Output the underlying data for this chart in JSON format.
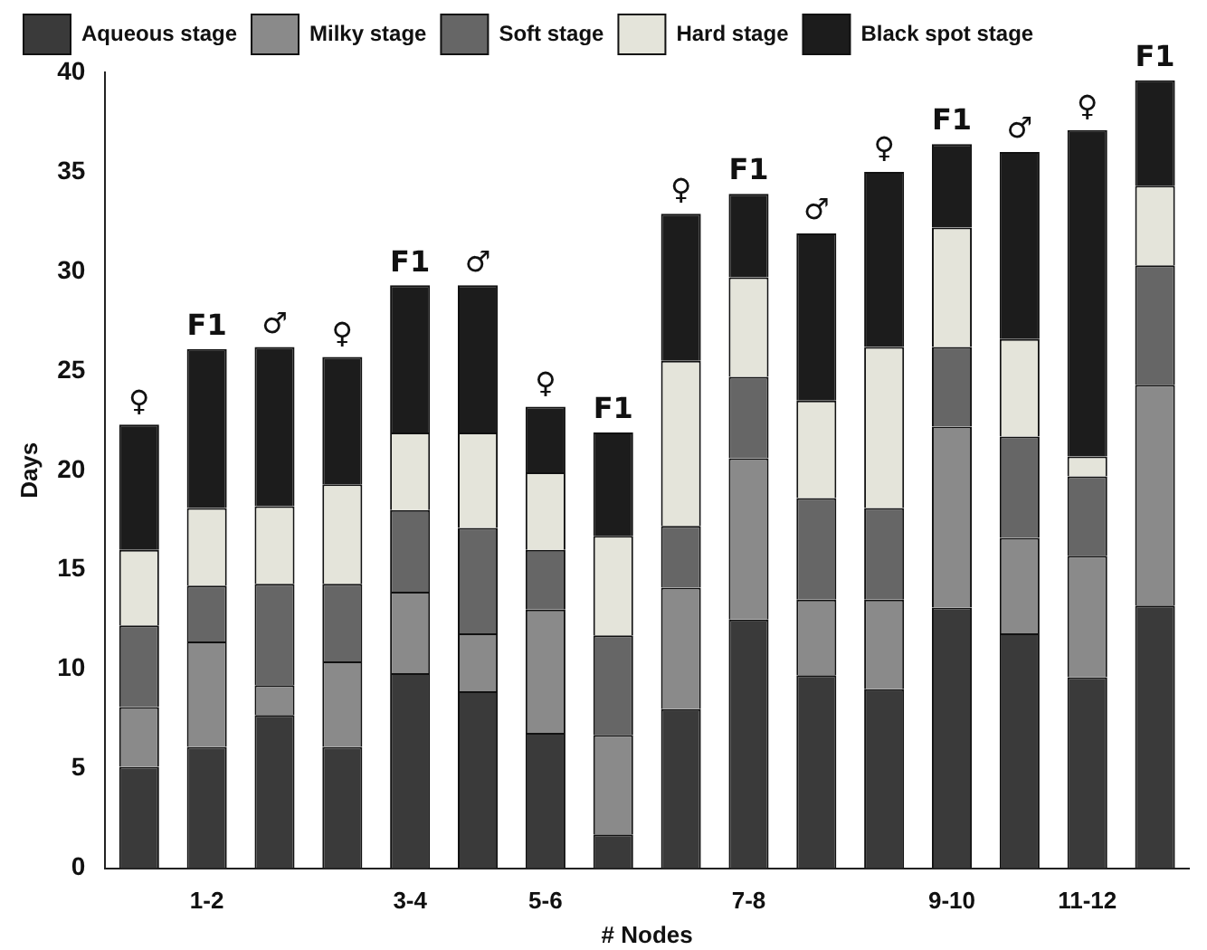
{
  "chart_data": {
    "type": "bar",
    "stacked": true,
    "xlabel": "# Nodes",
    "ylabel": "Days",
    "categories": [
      null,
      "1-2",
      null,
      null,
      "3-4",
      null,
      "5-6",
      null,
      null,
      "7-8",
      null,
      null,
      "9-10",
      null,
      "11-12",
      null
    ],
    "series": [
      {
        "name": "Aqueous stage",
        "color": "#3a3a3a",
        "values": [
          5.1,
          6.1,
          7.7,
          6.1,
          9.8,
          8.9,
          6.8,
          1.7,
          8.0,
          12.5,
          9.7,
          9.0,
          13.1,
          11.8,
          9.6,
          13.2
        ]
      },
      {
        "name": "Milky stage",
        "color": "#8a8a8a",
        "values": [
          3.0,
          5.3,
          1.5,
          4.3,
          4.1,
          2.9,
          6.2,
          5.0,
          6.1,
          8.1,
          3.8,
          4.5,
          9.1,
          4.8,
          6.1,
          11.1
        ]
      },
      {
        "name": "Soft stage",
        "color": "#666666",
        "values": [
          4.1,
          2.8,
          5.1,
          3.9,
          4.1,
          5.3,
          3.0,
          5.0,
          3.1,
          4.1,
          5.1,
          4.6,
          4.0,
          5.1,
          4.0,
          6.0
        ]
      },
      {
        "name": "Hard stage",
        "color": "#e4e4da",
        "values": [
          3.8,
          3.9,
          3.9,
          5.0,
          3.9,
          4.8,
          3.9,
          5.0,
          8.3,
          5.0,
          4.9,
          8.1,
          6.0,
          4.9,
          1.0,
          4.0
        ]
      },
      {
        "name": "Black spot stage",
        "color": "#1c1c1c",
        "values": [
          6.3,
          8.0,
          8.0,
          6.4,
          7.4,
          7.4,
          3.3,
          5.2,
          7.4,
          4.2,
          8.4,
          8.8,
          4.2,
          9.4,
          16.4,
          5.3
        ],
        "value_labels": [
          "♀",
          "F1",
          "♂",
          "♀",
          "F1",
          "♂",
          "♀",
          "F1",
          "♀",
          "F1",
          "♂",
          "♀",
          "F1",
          "♂",
          "♀",
          "F1"
        ]
      }
    ],
    "ylim": [
      0,
      40
    ],
    "yticks": [
      0,
      5,
      10,
      15,
      20,
      25,
      30,
      35,
      40
    ],
    "grid": false,
    "legend": "top"
  }
}
